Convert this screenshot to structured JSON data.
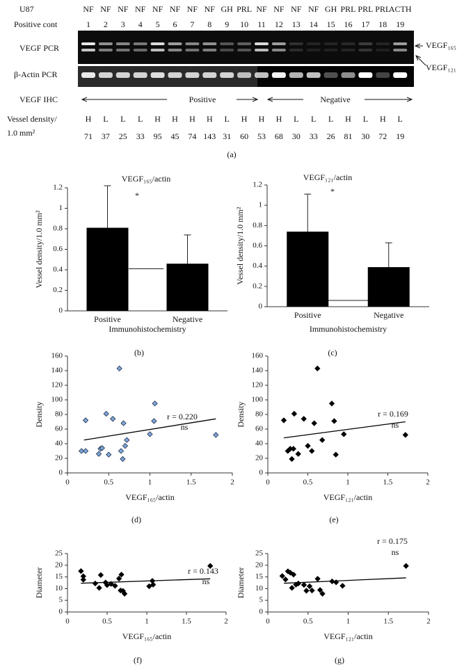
{
  "panel_a": {
    "lane_types": [
      "U87",
      "NF",
      "NF",
      "NF",
      "NF",
      "NF",
      "NF",
      "NF",
      "NF",
      "GH",
      "PRL",
      "NF",
      "NF",
      "NF",
      "NF",
      "GH",
      "PRL",
      "PRL",
      "PRL",
      "ACTH"
    ],
    "lane_numbers": [
      "Positive cont",
      "1",
      "2",
      "3",
      "4",
      "5",
      "6",
      "7",
      "8",
      "9",
      "10",
      "11",
      "12",
      "13",
      "14",
      "15",
      "16",
      "17",
      "18",
      "19"
    ],
    "row_labels": {
      "vegf_pcr": "VEGF PCR",
      "actin_pcr": "β-Actin PCR",
      "ihc": "VEGF IHC",
      "density": [
        "Vessel density/",
        "1.0 mm²"
      ]
    },
    "band_labels": [
      "VEGF₁₆₅",
      "VEGF₁₂₁"
    ],
    "ihc_groups": [
      "Positive",
      "Negative"
    ],
    "grades": [
      "H",
      "L",
      "L",
      "L",
      "H",
      "H",
      "H",
      "H",
      "L",
      "H",
      "H",
      "H",
      "L",
      "L",
      "L",
      "H",
      "L",
      "H",
      "L"
    ],
    "vessel_density": [
      "71",
      "37",
      "25",
      "33",
      "95",
      "45",
      "74",
      "143",
      "31",
      "60",
      "53",
      "68",
      "30",
      "33",
      "26",
      "81",
      "30",
      "72",
      "19"
    ],
    "caption": "(a)"
  },
  "chart_data": [
    {
      "type": "bar",
      "title": "VEGF₁₆₅/actin",
      "categories": [
        "Positive",
        "Negative"
      ],
      "values": [
        0.81,
        0.46
      ],
      "errors": [
        0.41,
        0.28
      ],
      "color": "#000000",
      "ylim": [
        0,
        1.2
      ],
      "yticks": [
        0,
        0.2,
        0.4,
        0.6,
        0.8,
        1,
        1.2
      ],
      "ylabel": "Vessel density/1.0 mm²",
      "xlabel": "Immunohistochemistry",
      "annotation": "*",
      "caption": "(b)"
    },
    {
      "type": "bar",
      "title": "VEGF₁₂₁/actin",
      "categories": [
        "Positive",
        "Negative"
      ],
      "values": [
        0.74,
        0.39
      ],
      "errors": [
        0.37,
        0.24
      ],
      "color": "#000000",
      "ylim": [
        0,
        1.2
      ],
      "yticks": [
        0,
        0.2,
        0.4,
        0.6,
        0.8,
        1,
        1.2
      ],
      "ylabel": "Vessel density/1.0 mm²",
      "xlabel": "Immunohistochemistry",
      "annotation": "*",
      "caption": "(c)"
    },
    {
      "type": "scatter",
      "x": [
        0.17,
        0.22,
        0.22,
        0.38,
        0.4,
        0.42,
        0.47,
        0.5,
        0.55,
        0.63,
        0.65,
        0.67,
        0.68,
        0.7,
        0.72,
        1.0,
        1.05,
        1.06,
        1.8
      ],
      "values": [
        30,
        30,
        72,
        26,
        33,
        34,
        81,
        25,
        74,
        143,
        30,
        19,
        68,
        37,
        45,
        53,
        71,
        95,
        52
      ],
      "color": "#7fa7d6",
      "trend": {
        "x": [
          0.2,
          1.8
        ],
        "values": [
          45,
          74
        ]
      },
      "xlim": [
        0,
        2
      ],
      "xticks": [
        0,
        0.5,
        1,
        1.5,
        2
      ],
      "ylim": [
        0,
        160
      ],
      "yticks": [
        0,
        20,
        40,
        60,
        80,
        100,
        120,
        140,
        160
      ],
      "xlabel": "VEGF₁₆₅/actin",
      "ylabel": "Density",
      "annotations": [
        "r = 0.220",
        "ns"
      ],
      "caption": "(d)"
    },
    {
      "type": "scatter",
      "x": [
        0.2,
        0.25,
        0.28,
        0.3,
        0.32,
        0.33,
        0.38,
        0.45,
        0.5,
        0.55,
        0.58,
        0.62,
        0.68,
        0.8,
        0.83,
        0.85,
        0.95,
        1.72
      ],
      "values": [
        72,
        30,
        33,
        19,
        33,
        81,
        26,
        74,
        37,
        30,
        68,
        143,
        45,
        95,
        71,
        25,
        53,
        52
      ],
      "color": "#000000",
      "trend": {
        "x": [
          0.2,
          1.72
        ],
        "values": [
          48,
          70
        ]
      },
      "xlim": [
        0,
        2
      ],
      "xticks": [
        0,
        0.5,
        1,
        1.5,
        2
      ],
      "ylim": [
        0,
        160
      ],
      "yticks": [
        0,
        20,
        40,
        60,
        80,
        100,
        120,
        140,
        160
      ],
      "xlabel": "VEGF₁₂₁/actin",
      "ylabel": "Density",
      "annotations": [
        "r = 0.169",
        "ns"
      ],
      "caption": "(e)"
    },
    {
      "type": "scatter",
      "x": [
        0.17,
        0.2,
        0.2,
        0.35,
        0.4,
        0.42,
        0.48,
        0.5,
        0.55,
        0.6,
        0.65,
        0.67,
        0.68,
        0.7,
        0.72,
        1.03,
        1.07,
        1.08,
        1.8
      ],
      "values": [
        17.5,
        15.3,
        13.8,
        12.2,
        10.3,
        15.8,
        12.6,
        11.5,
        12,
        11.2,
        14.3,
        9.2,
        16,
        9,
        7.8,
        11,
        13.3,
        11.7,
        19.7
      ],
      "color": "#000000",
      "trend": {
        "x": [
          0.17,
          1.8
        ],
        "values": [
          12.3,
          14.2
        ]
      },
      "xlim": [
        0,
        2
      ],
      "xticks": [
        0,
        0.5,
        1,
        1.5,
        2
      ],
      "ylim": [
        0,
        25
      ],
      "yticks": [
        0,
        5,
        10,
        15,
        20,
        25
      ],
      "xlabel": "VEGF₁₆₅/actin",
      "ylabel": "Diameter",
      "annotations": [
        "r = 0.143",
        "ns"
      ],
      "caption": "(f)"
    },
    {
      "type": "scatter",
      "x": [
        0.18,
        0.22,
        0.25,
        0.28,
        0.3,
        0.32,
        0.35,
        0.38,
        0.45,
        0.48,
        0.52,
        0.55,
        0.62,
        0.65,
        0.68,
        0.8,
        0.85,
        0.93,
        1.72
      ],
      "values": [
        15.4,
        13.9,
        17.4,
        16.8,
        10.3,
        16,
        11.7,
        12.2,
        11.6,
        9.1,
        11,
        9.2,
        14.2,
        9.4,
        7.8,
        13.1,
        12.7,
        11.2,
        19.7
      ],
      "color": "#000000",
      "trend": {
        "x": [
          0.2,
          1.72
        ],
        "values": [
          12.3,
          14.6
        ]
      },
      "xlim": [
        0,
        2
      ],
      "xticks": [
        0,
        0.5,
        1,
        1.5,
        2
      ],
      "ylim": [
        0,
        25
      ],
      "yticks": [
        0,
        5,
        10,
        15,
        20,
        25
      ],
      "xlabel": "VEGF₁₂₁/actin",
      "ylabel": "Diameter",
      "annotations": [
        "r = 0.175",
        "ns"
      ],
      "caption": "(g)"
    }
  ]
}
